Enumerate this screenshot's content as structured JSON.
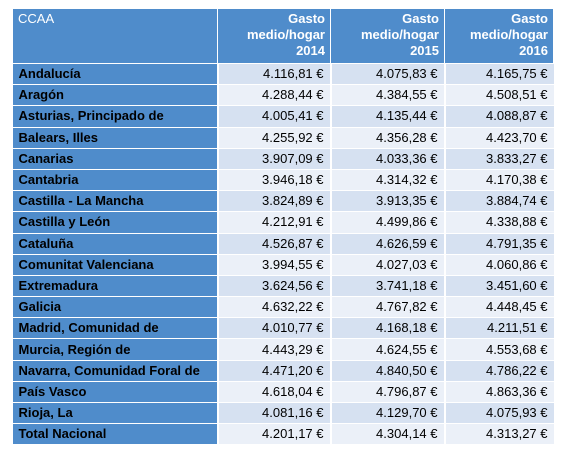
{
  "table": {
    "header": {
      "ccaa": "CCAA",
      "col_2014": [
        "Gasto",
        "medio/hogar",
        "2014"
      ],
      "col_2015": [
        "Gasto",
        "medio/hogar",
        "2015"
      ],
      "col_2016": [
        "Gasto",
        "medio/hogar",
        "2016"
      ]
    },
    "rows": [
      {
        "region": "Andalucía",
        "y2014": "4.116,81 €",
        "y2015": "4.075,83 €",
        "y2016": "4.165,75 €"
      },
      {
        "region": "Aragón",
        "y2014": "4.288,44 €",
        "y2015": "4.384,55 €",
        "y2016": "4.508,51 €"
      },
      {
        "region": "Asturias, Principado de",
        "y2014": "4.005,41 €",
        "y2015": "4.135,44 €",
        "y2016": "4.088,87 €"
      },
      {
        "region": "Balears, Illes",
        "y2014": "4.255,92 €",
        "y2015": "4.356,28 €",
        "y2016": "4.423,70 €"
      },
      {
        "region": "Canarias",
        "y2014": "3.907,09 €",
        "y2015": "4.033,36 €",
        "y2016": "3.833,27 €"
      },
      {
        "region": "Cantabria",
        "y2014": "3.946,18 €",
        "y2015": "4.314,32 €",
        "y2016": "4.170,38 €"
      },
      {
        "region": "Castilla - La Mancha",
        "y2014": "3.824,89 €",
        "y2015": "3.913,35 €",
        "y2016": "3.884,74 €"
      },
      {
        "region": "Castilla y León",
        "y2014": "4.212,91 €",
        "y2015": "4.499,86 €",
        "y2016": "4.338,88 €"
      },
      {
        "region": "Cataluña",
        "y2014": "4.526,87 €",
        "y2015": "4.626,59 €",
        "y2016": "4.791,35 €"
      },
      {
        "region": "Comunitat Valenciana",
        "y2014": "3.994,55 €",
        "y2015": "4.027,03 €",
        "y2016": "4.060,86 €"
      },
      {
        "region": "Extremadura",
        "y2014": "3.624,56 €",
        "y2015": "3.741,18 €",
        "y2016": "3.451,60 €"
      },
      {
        "region": "Galicia",
        "y2014": "4.632,22 €",
        "y2015": "4.767,82 €",
        "y2016": "4.448,45 €"
      },
      {
        "region": "Madrid, Comunidad de",
        "y2014": "4.010,77 €",
        "y2015": "4.168,18 €",
        "y2016": "4.211,51 €"
      },
      {
        "region": "Murcia, Región de",
        "y2014": "4.443,29 €",
        "y2015": "4.624,55 €",
        "y2016": "4.553,68 €"
      },
      {
        "region": "Navarra, Comunidad Foral de",
        "y2014": "4.471,20 €",
        "y2015": "4.840,50 €",
        "y2016": "4.786,22 €"
      },
      {
        "region": "País Vasco",
        "y2014": "4.618,04 €",
        "y2015": "4.796,87 €",
        "y2016": "4.863,36 €"
      },
      {
        "region": "Rioja, La",
        "y2014": "4.081,16 €",
        "y2015": "4.129,70 €",
        "y2016": "4.075,93 €"
      },
      {
        "region": "Total Nacional",
        "y2014": "4.201,17 €",
        "y2015": "4.304,14 €",
        "y2016": "4.313,27 €"
      }
    ]
  },
  "colors": {
    "header_bg": "#4f8ccb",
    "region_bg": "#4f8ccb",
    "row_light_a": "#d6e1f1",
    "row_light_b": "#ebf0f8"
  }
}
